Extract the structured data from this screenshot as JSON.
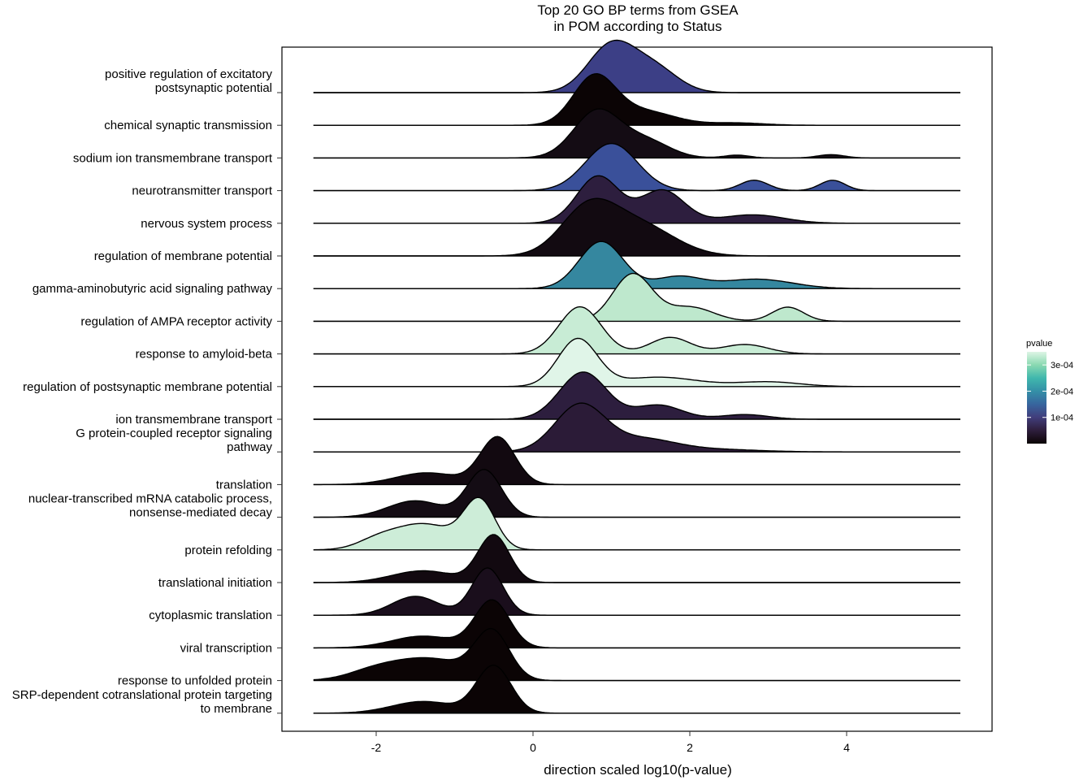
{
  "chart_data": {
    "type": "ridgeline",
    "title_line1": "Top 20 GO BP terms from GSEA",
    "title_line2": "in POM according to Status",
    "xlabel": "direction scaled log10(p-value)",
    "ylabel": "",
    "xlim": [
      -3.0,
      5.9
    ],
    "x_ticks": [
      -2,
      0,
      2,
      4
    ],
    "x_tick_labels": [
      "-2",
      "0",
      "2",
      "4"
    ],
    "grid": false,
    "legend": {
      "title": "pvalue",
      "position": "right",
      "scale": "mako",
      "range": [
        0,
        0.00035
      ],
      "ticks": [
        0.0001,
        0.0002,
        0.0003
      ],
      "tick_labels": [
        "1e-04",
        "2e-04",
        "3e-04"
      ],
      "colors": [
        "#0B0405",
        "#2E1E3C",
        "#413D7B",
        "#37659E",
        "#348FA7",
        "#40B7AD",
        "#8AD9B1",
        "#DEF5E5"
      ]
    },
    "series": [
      {
        "name": "positive regulation of excitatory postsynaptic potential",
        "label_lines": [
          "positive regulation of excitatory",
          "postsynaptic potential"
        ],
        "pvalue": 0.00017,
        "color": "#3C3F86",
        "x_range": [
          -2.8,
          5.45
        ],
        "peaks": [
          [
            1.0,
            0.3,
            1.0
          ],
          [
            1.55,
            0.3,
            0.5
          ]
        ]
      },
      {
        "name": "chemical synaptic transmission",
        "label_lines": [
          "chemical synaptic transmission"
        ],
        "pvalue": 2e-05,
        "color": "#0B0405",
        "x_range": [
          -2.8,
          5.45
        ],
        "peaks": [
          [
            0.78,
            0.27,
            1.0
          ],
          [
            1.4,
            0.4,
            0.3
          ],
          [
            2.6,
            0.35,
            0.05
          ]
        ]
      },
      {
        "name": "sodium ion transmembrane transport",
        "label_lines": [
          "sodium ion transmembrane transport"
        ],
        "pvalue": 2e-05,
        "color": "#140C14",
        "x_range": [
          -2.8,
          5.45
        ],
        "peaks": [
          [
            0.82,
            0.3,
            1.0
          ],
          [
            1.45,
            0.3,
            0.35
          ],
          [
            2.6,
            0.16,
            0.06
          ],
          [
            3.8,
            0.17,
            0.07
          ]
        ]
      },
      {
        "name": "neurotransmitter transport",
        "label_lines": [
          "neurotransmitter transport"
        ],
        "pvalue": 0.00019,
        "color": "#3A509A",
        "x_range": [
          -2.8,
          5.45
        ],
        "peaks": [
          [
            1.0,
            0.33,
            1.0
          ],
          [
            2.82,
            0.18,
            0.22
          ],
          [
            3.82,
            0.16,
            0.22
          ]
        ]
      },
      {
        "name": "nervous system process",
        "label_lines": [
          "nervous system process"
        ],
        "pvalue": 9e-05,
        "color": "#2D1E3E",
        "x_range": [
          -2.8,
          5.45
        ],
        "peaks": [
          [
            0.83,
            0.27,
            1.0
          ],
          [
            1.65,
            0.28,
            0.7
          ],
          [
            2.8,
            0.4,
            0.18
          ]
        ]
      },
      {
        "name": "regulation of membrane potential",
        "label_lines": [
          "regulation of membrane potential"
        ],
        "pvalue": 2e-05,
        "color": "#120A11",
        "x_range": [
          -2.8,
          5.45
        ],
        "peaks": [
          [
            0.7,
            0.35,
            0.95
          ],
          [
            1.35,
            0.45,
            0.65
          ]
        ]
      },
      {
        "name": "gamma-aminobutyric acid signaling pathway",
        "label_lines": [
          "gamma-aminobutyric acid signaling pathway"
        ],
        "pvalue": 0.00025,
        "color": "#35879F",
        "x_range": [
          -2.8,
          5.45
        ],
        "peaks": [
          [
            0.87,
            0.28,
            1.0
          ],
          [
            1.85,
            0.3,
            0.25
          ],
          [
            2.85,
            0.45,
            0.2
          ]
        ]
      },
      {
        "name": "regulation of AMPA receptor activity",
        "label_lines": [
          "regulation of AMPA receptor activity"
        ],
        "pvalue": 0.00031,
        "color": "#BEE8CD",
        "x_range": [
          -2.8,
          5.45
        ],
        "peaks": [
          [
            1.27,
            0.25,
            1.0
          ],
          [
            2.0,
            0.3,
            0.3
          ],
          [
            3.25,
            0.2,
            0.3
          ]
        ]
      },
      {
        "name": "response to amyloid-beta",
        "label_lines": [
          "response to amyloid-beta"
        ],
        "pvalue": 0.00032,
        "color": "#C8ECD5",
        "x_range": [
          -2.8,
          5.45
        ],
        "peaks": [
          [
            0.6,
            0.27,
            1.0
          ],
          [
            1.75,
            0.26,
            0.35
          ],
          [
            2.7,
            0.3,
            0.2
          ]
        ]
      },
      {
        "name": "regulation of postsynaptic membrane potential",
        "label_lines": [
          "regulation of postsynaptic membrane potential"
        ],
        "pvalue": 0.00034,
        "color": "#E0F5E8",
        "x_range": [
          -2.8,
          5.45
        ],
        "peaks": [
          [
            0.57,
            0.25,
            1.0
          ],
          [
            1.6,
            0.5,
            0.2
          ],
          [
            3.0,
            0.4,
            0.1
          ]
        ]
      },
      {
        "name": "ion transmembrane transport",
        "label_lines": [
          "ion transmembrane transport"
        ],
        "pvalue": 9e-05,
        "color": "#2D1E3E",
        "x_range": [
          -2.8,
          5.45
        ],
        "peaks": [
          [
            0.64,
            0.3,
            1.0
          ],
          [
            1.6,
            0.3,
            0.3
          ],
          [
            2.7,
            0.3,
            0.1
          ]
        ]
      },
      {
        "name": "G protein-coupled receptor signaling pathway",
        "label_lines": [
          "G protein-coupled receptor signaling",
          "pathway"
        ],
        "pvalue": 8e-05,
        "color": "#2B1B37",
        "x_range": [
          -2.8,
          5.45
        ],
        "peaks": [
          [
            0.6,
            0.32,
            1.0
          ],
          [
            1.4,
            0.4,
            0.25
          ],
          [
            2.2,
            0.6,
            0.06
          ]
        ]
      },
      {
        "name": "translation",
        "label_lines": [
          "translation"
        ],
        "pvalue": 2e-05,
        "color": "#120910",
        "x_range": [
          -2.8,
          5.45
        ],
        "peaks": [
          [
            -0.45,
            0.22,
            1.0
          ],
          [
            -1.35,
            0.4,
            0.25
          ]
        ]
      },
      {
        "name": "nuclear-transcribed mRNA catabolic process, nonsense-mediated decay",
        "label_lines": [
          "nuclear-transcribed mRNA catabolic process,",
          "nonsense-mediated decay"
        ],
        "pvalue": 2e-05,
        "color": "#140C14",
        "x_range": [
          -2.8,
          5.45
        ],
        "peaks": [
          [
            -0.62,
            0.22,
            1.0
          ],
          [
            -1.5,
            0.35,
            0.35
          ]
        ]
      },
      {
        "name": "protein refolding",
        "label_lines": [
          "protein refolding"
        ],
        "pvalue": 0.00031,
        "color": "#CDEDD8",
        "x_range": [
          -2.8,
          5.45
        ],
        "peaks": [
          [
            -0.68,
            0.2,
            1.0
          ],
          [
            -1.4,
            0.4,
            0.55
          ],
          [
            -2.0,
            0.25,
            0.15
          ]
        ]
      },
      {
        "name": "translational initiation",
        "label_lines": [
          "translational initiation"
        ],
        "pvalue": 2e-05,
        "color": "#120910",
        "x_range": [
          -2.8,
          5.45
        ],
        "peaks": [
          [
            -0.5,
            0.2,
            1.0
          ],
          [
            -1.4,
            0.4,
            0.25
          ]
        ]
      },
      {
        "name": "cytoplasmic translation",
        "label_lines": [
          "cytoplasmic translation"
        ],
        "pvalue": 3e-05,
        "color": "#1A0E1C",
        "x_range": [
          -2.8,
          5.45
        ],
        "peaks": [
          [
            -0.58,
            0.2,
            1.0
          ],
          [
            -1.5,
            0.3,
            0.4
          ]
        ]
      },
      {
        "name": "viral transcription",
        "label_lines": [
          "viral transcription"
        ],
        "pvalue": 1e-05,
        "color": "#0B0405",
        "x_range": [
          -2.8,
          5.45
        ],
        "peaks": [
          [
            -0.52,
            0.22,
            1.0
          ],
          [
            -1.4,
            0.4,
            0.25
          ]
        ]
      },
      {
        "name": "response to unfolded protein",
        "label_lines": [
          "response to unfolded protein"
        ],
        "pvalue": 1e-05,
        "color": "#0B0405",
        "x_range": [
          -2.8,
          5.45
        ],
        "peaks": [
          [
            -0.52,
            0.22,
            1.0
          ],
          [
            -1.3,
            0.45,
            0.45
          ],
          [
            -2.0,
            0.35,
            0.2
          ]
        ]
      },
      {
        "name": "SRP-dependent cotranslational protein targeting to membrane",
        "label_lines": [
          "SRP-dependent cotranslational protein targeting",
          "to membrane"
        ],
        "pvalue": 1e-05,
        "color": "#0B0405",
        "x_range": [
          -2.8,
          5.45
        ],
        "peaks": [
          [
            -0.5,
            0.22,
            1.0
          ],
          [
            -1.4,
            0.4,
            0.25
          ]
        ]
      }
    ]
  }
}
